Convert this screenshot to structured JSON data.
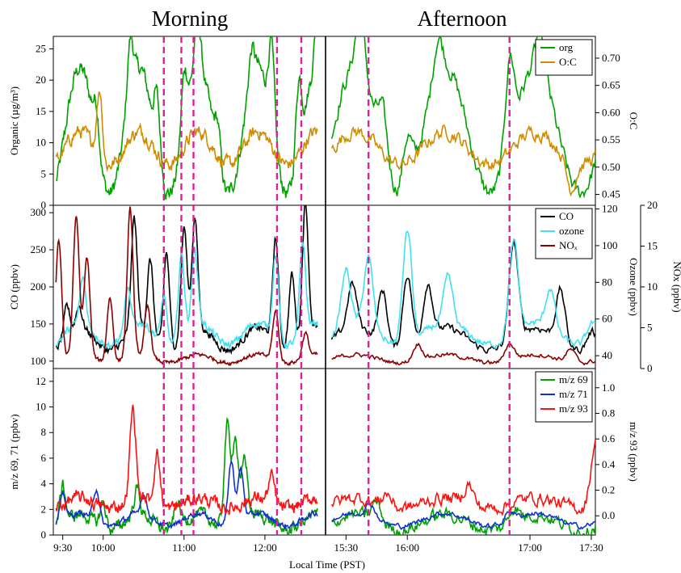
{
  "chart_data": {
    "type": "line",
    "headers": {
      "left": "Morning",
      "right": "Afternoon"
    },
    "xlabel": "Local Time (PST)",
    "x_ticks": {
      "morning": [
        {
          "t": "09:30",
          "label": "9:30"
        },
        {
          "t": "10:00",
          "label": "10:00"
        },
        {
          "t": "11:00",
          "label": "11:00"
        },
        {
          "t": "12:00",
          "label": "12:00"
        }
      ],
      "afternoon": [
        {
          "t": "15:30",
          "label": "15:30"
        },
        {
          "t": "16:00",
          "label": "16:00"
        },
        {
          "t": "17:00",
          "label": "17:00"
        },
        {
          "t": "17:30",
          "label": "17:30"
        }
      ]
    },
    "x_range": {
      "morning": [
        "09:23",
        "12:45"
      ],
      "afternoon": [
        "15:20",
        "17:32"
      ]
    },
    "event_times": [
      "10:45",
      "10:58",
      "11:07",
      "12:09",
      "12:27",
      "15:41",
      "16:50"
    ],
    "panels": [
      {
        "id": "top",
        "left_axis": {
          "label": "Organic (µg/m³)",
          "ylim": [
            0,
            27
          ],
          "ticks": [
            0,
            5,
            10,
            15,
            20,
            25
          ]
        },
        "right_axis": {
          "label": "O:C",
          "ylim": [
            0.43,
            0.74
          ],
          "ticks": [
            0.45,
            0.5,
            0.55,
            0.6,
            0.65,
            0.7
          ],
          "tick_labels": [
            "0.45",
            "0.50",
            "0.55",
            "0.60",
            "0.65",
            "0.70"
          ]
        },
        "series": [
          {
            "name": "org",
            "color": "#00a000",
            "axis": "left",
            "base": 12,
            "amp": 10,
            "noise": 2.5,
            "peaks": [
              [
                "09:55",
                6
              ],
              [
                "10:20",
                9
              ],
              [
                "10:40",
                9
              ],
              [
                "11:00",
                9
              ],
              [
                "11:10",
                8
              ],
              [
                "11:25",
                6
              ],
              [
                "11:50",
                5
              ],
              [
                "12:05",
                13
              ],
              [
                "12:25",
                12
              ],
              [
                "12:40",
                14
              ],
              [
                "15:37",
                9
              ],
              [
                "15:48",
                7
              ],
              [
                "16:00",
                8
              ],
              [
                "16:15",
                6
              ],
              [
                "16:50",
                14
              ],
              [
                "17:05",
                6
              ]
            ]
          },
          {
            "name": "O:C",
            "color": "#d08c00",
            "axis": "right",
            "base": 0.535,
            "amp": 0.03,
            "noise": 0.025,
            "peaks": [
              [
                "09:58",
                0.2
              ],
              [
                "09:59",
                -0.09
              ],
              [
                "17:20",
                -0.05
              ]
            ]
          }
        ]
      },
      {
        "id": "middle",
        "left_axis": {
          "label": "CO (ppbv)",
          "ylim": [
            90,
            310
          ],
          "ticks": [
            100,
            150,
            200,
            250,
            300
          ]
        },
        "right_axis": {
          "label": "Ozone (ppbv)",
          "ylim": [
            33,
            122
          ],
          "ticks": [
            40,
            60,
            80,
            100,
            120
          ]
        },
        "far_right_axis": {
          "label": "NOx (ppbv)",
          "ylim": [
            0,
            20
          ],
          "ticks": [
            0,
            5,
            10,
            15,
            20
          ]
        },
        "series": [
          {
            "name": "CO",
            "color": "#000000",
            "axis": "left",
            "base": 130,
            "amp": 15,
            "noise": 10,
            "peaks": [
              [
                "09:33",
                40
              ],
              [
                "09:42",
                30
              ],
              [
                "10:23",
                150
              ],
              [
                "10:35",
                100
              ],
              [
                "10:47",
                130
              ],
              [
                "11:00",
                150
              ],
              [
                "11:08",
                150
              ],
              [
                "12:08",
                140
              ],
              [
                "12:20",
                100
              ],
              [
                "12:30",
                180
              ],
              [
                "15:33",
                60
              ],
              [
                "15:48",
                70
              ],
              [
                "16:00",
                100
              ],
              [
                "16:10",
                70
              ],
              [
                "16:52",
                130
              ],
              [
                "17:15",
                70
              ],
              [
                "17:30",
                20
              ]
            ]
          },
          {
            "name": "ozone",
            "color": "#40e0f0",
            "axis": "right",
            "base": 52,
            "amp": 6,
            "noise": 4,
            "peaks": [
              [
                "09:45",
                25
              ],
              [
                "10:18",
                22
              ],
              [
                "10:45",
                25
              ],
              [
                "10:58",
                45
              ],
              [
                "11:08",
                40
              ],
              [
                "12:08",
                45
              ],
              [
                "12:28",
                50
              ],
              [
                "15:30",
                30
              ],
              [
                "15:41",
                38
              ],
              [
                "16:00",
                62
              ],
              [
                "16:20",
                25
              ],
              [
                "16:52",
                50
              ],
              [
                "17:10",
                22
              ],
              [
                "17:30",
                10
              ]
            ]
          },
          {
            "name": "NOₓ",
            "color": "#8b0000",
            "axis": "far_right",
            "base": 1.2,
            "amp": 0.5,
            "noise": 0.5,
            "peaks": [
              [
                "09:27",
                15
              ],
              [
                "09:40",
                17
              ],
              [
                "09:48",
                12
              ],
              [
                "10:05",
                8
              ],
              [
                "10:20",
                18
              ],
              [
                "10:33",
                6
              ],
              [
                "12:08",
                6
              ],
              [
                "12:30",
                3
              ],
              [
                "16:05",
                2
              ],
              [
                "16:50",
                2
              ],
              [
                "17:20",
                1.5
              ]
            ]
          }
        ]
      },
      {
        "id": "bottom",
        "left_axis": {
          "label": "m/z 69, 71 (ppbv)",
          "ylim": [
            0,
            13
          ],
          "ticks": [
            0,
            2,
            4,
            6,
            8,
            10,
            12
          ]
        },
        "right_axis": {
          "label": "m/z 93 (ppbv)",
          "ylim": [
            -0.15,
            1.15
          ],
          "ticks": [
            0,
            0.2,
            0.4,
            0.6,
            0.8,
            1.0
          ],
          "tick_labels": [
            "0.0",
            "0.2",
            "0.4",
            "0.6",
            "0.8",
            "1.0"
          ]
        },
        "series": [
          {
            "name": "m/z 69",
            "color": "#00a000",
            "axis": "left",
            "base": 1,
            "amp": 0.6,
            "noise": 1.0,
            "peaks": [
              [
                "09:30",
                3
              ],
              [
                "10:00",
                2
              ],
              [
                "10:25",
                2
              ],
              [
                "10:55",
                2
              ],
              [
                "11:32",
                8
              ],
              [
                "11:38",
                7
              ],
              [
                "11:45",
                5
              ],
              [
                "15:45",
                1.5
              ],
              [
                "16:52",
                1.2
              ]
            ]
          },
          {
            "name": "m/z 71",
            "color": "#1030d0",
            "axis": "left",
            "base": 1.2,
            "amp": 0.5,
            "noise": 0.4,
            "peaks": [
              [
                "09:30",
                2
              ],
              [
                "09:55",
                2.5
              ],
              [
                "10:30",
                1.5
              ],
              [
                "11:35",
                5
              ],
              [
                "11:42",
                4
              ],
              [
                "15:42",
                1
              ],
              [
                "16:50",
                0.8
              ]
            ]
          },
          {
            "name": "m/z 93",
            "color": "#ff1010",
            "axis": "right",
            "base": 0.1,
            "amp": 0.04,
            "noise": 0.1,
            "peaks": [
              [
                "10:22",
                0.7
              ],
              [
                "10:40",
                0.4
              ],
              [
                "12:05",
                0.2
              ],
              [
                "15:50",
                0.1
              ],
              [
                "16:30",
                0.15
              ],
              [
                "17:32",
                0.5
              ]
            ]
          }
        ]
      }
    ]
  }
}
